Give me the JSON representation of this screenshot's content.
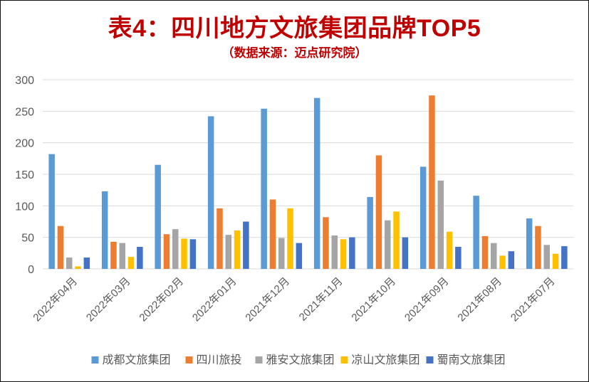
{
  "chart_data": {
    "type": "bar",
    "title": "表4：四川地方文旅集团品牌TOP5",
    "subtitle": "（数据来源：迈点研究院）",
    "categories": [
      "2022年04月",
      "2022年03月",
      "2022年02月",
      "2022年01月",
      "2021年12月",
      "2021年11月",
      "2021年10月",
      "2021年09月",
      "2021年08月",
      "2021年07月"
    ],
    "series": [
      {
        "name": "成都文旅集团",
        "color": "#5b9bd5",
        "values": [
          182,
          123,
          165,
          242,
          254,
          271,
          114,
          162,
          116,
          80
        ]
      },
      {
        "name": "四川旅投",
        "color": "#ed7d31",
        "values": [
          68,
          43,
          55,
          96,
          110,
          82,
          180,
          275,
          52,
          68
        ]
      },
      {
        "name": "雅安文旅集团",
        "color": "#a5a5a5",
        "values": [
          18,
          41,
          63,
          54,
          49,
          53,
          77,
          140,
          41,
          38
        ]
      },
      {
        "name": "凉山文旅集团",
        "color": "#ffc000",
        "values": [
          4,
          19,
          48,
          61,
          96,
          47,
          91,
          59,
          21,
          24
        ]
      },
      {
        "name": "蜀南文旅集团",
        "color": "#4472c4",
        "values": [
          18,
          35,
          47,
          75,
          41,
          50,
          50,
          35,
          28,
          36
        ]
      }
    ],
    "y_ticks": [
      0,
      50,
      100,
      150,
      200,
      250,
      300
    ],
    "ylim": [
      0,
      300
    ],
    "grid": true,
    "legend": "bottom",
    "xlabel": "",
    "ylabel": ""
  }
}
